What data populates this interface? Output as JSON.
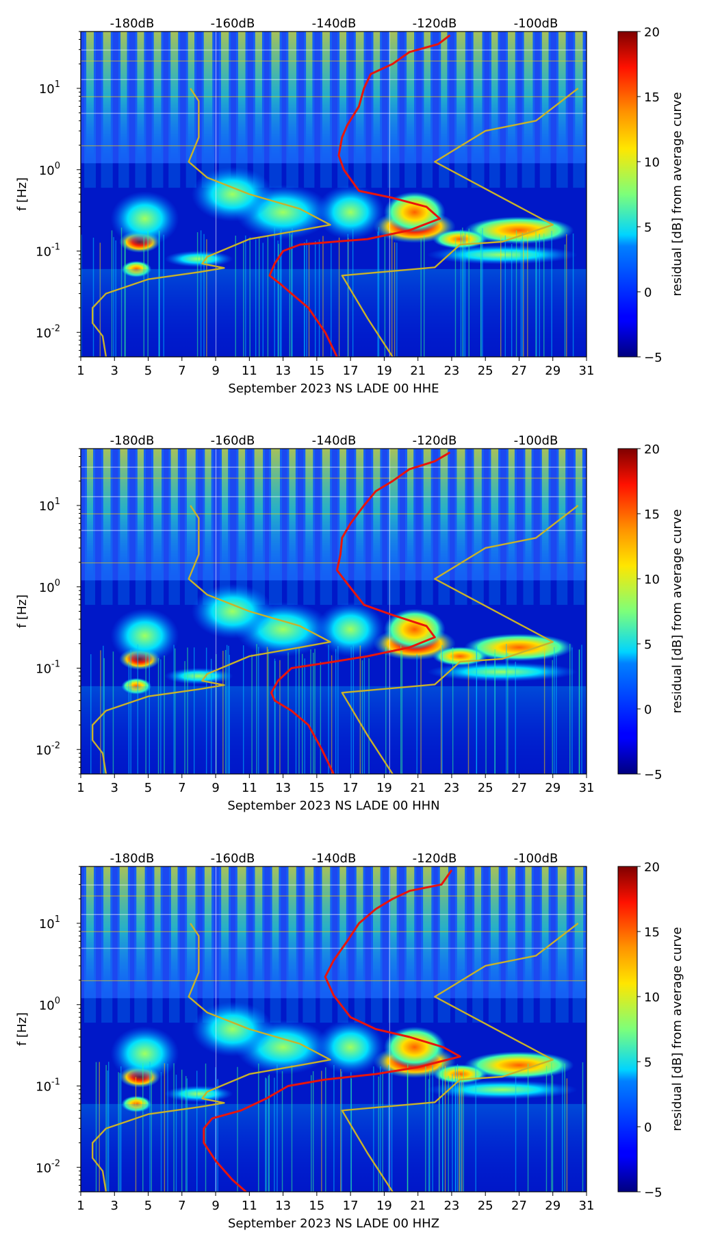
{
  "colors": {
    "psd_curve": "#e8150c",
    "noise_model_curve": "#c9b22a",
    "top_scale_text": "#e00000",
    "colormap": "jet"
  },
  "chart_data": [
    {
      "type": "heatmap",
      "xlabel": "September 2023 NS LADE 00 HHE",
      "ylabel": "f [Hz]",
      "x_ticks": [
        "1",
        "3",
        "5",
        "7",
        "9",
        "11",
        "13",
        "15",
        "17",
        "19",
        "21",
        "23",
        "25",
        "27",
        "29",
        "31"
      ],
      "xlim": [
        1,
        31
      ],
      "y_scale": "log",
      "ylim": [
        0.005,
        50
      ],
      "y_ticks": [
        {
          "exp": "-2"
        },
        {
          "exp": "-1"
        },
        {
          "exp": "0"
        },
        {
          "exp": "1"
        }
      ],
      "y_tick_base": "10",
      "top_scale_labels": [
        "-180dB",
        "-160dB",
        "-140dB",
        "-120dB",
        "-100dB"
      ],
      "colorbar": {
        "label": "residual [dB] from average curve",
        "min": -5,
        "max": 20,
        "ticks": [
          "20",
          "15",
          "10",
          "5",
          "0",
          "−5"
        ]
      },
      "series": [
        {
          "color_key": "psd_curve",
          "points": [
            [
              22.9,
              45
            ],
            [
              22.2,
              35
            ],
            [
              20.5,
              28
            ],
            [
              19.5,
              20
            ],
            [
              18.2,
              15
            ],
            [
              17.8,
              10
            ],
            [
              17.5,
              6
            ],
            [
              16.8,
              3.5
            ],
            [
              16.5,
              2.5
            ],
            [
              16.3,
              1.5
            ],
            [
              16.6,
              1.0
            ],
            [
              17.5,
              0.55
            ],
            [
              19.5,
              0.45
            ],
            [
              21.5,
              0.35
            ],
            [
              22.3,
              0.25
            ],
            [
              20.5,
              0.18
            ],
            [
              18,
              0.14
            ],
            [
              16,
              0.13
            ],
            [
              14,
              0.12
            ],
            [
              13,
              0.1
            ],
            [
              12.5,
              0.07
            ],
            [
              12.2,
              0.05
            ],
            [
              12.8,
              0.04
            ],
            [
              13.5,
              0.03
            ],
            [
              14.5,
              0.02
            ],
            [
              15.5,
              0.01
            ],
            [
              16.2,
              0.005
            ]
          ]
        },
        {
          "color_key": "noise_model_curve",
          "points": [
            [
              2.5,
              0.005
            ],
            [
              2.3,
              0.009
            ],
            [
              1.7,
              0.013
            ],
            [
              1.7,
              0.02
            ],
            [
              2.5,
              0.03
            ],
            [
              5,
              0.045
            ],
            [
              8,
              0.055
            ],
            [
              9.5,
              0.062
            ],
            [
              8.2,
              0.07
            ],
            [
              8.5,
              0.085
            ],
            [
              11,
              0.14
            ],
            [
              14,
              0.18
            ],
            [
              15.8,
              0.21
            ],
            [
              14,
              0.33
            ],
            [
              11,
              0.5
            ],
            [
              8.5,
              0.8
            ],
            [
              7.4,
              1.25
            ],
            [
              8,
              2.5
            ],
            [
              8,
              7
            ],
            [
              7.5,
              10
            ]
          ]
        },
        {
          "color_key": "noise_model_curve",
          "points": [
            [
              19.5,
              0.005
            ],
            [
              18,
              0.015
            ],
            [
              16.5,
              0.05
            ],
            [
              22,
              0.063
            ],
            [
              23.5,
              0.12
            ],
            [
              26,
              0.13
            ],
            [
              29,
              0.21
            ],
            [
              22,
              1.25
            ],
            [
              25,
              3
            ],
            [
              28,
              4
            ],
            [
              30.5,
              10
            ]
          ]
        }
      ]
    },
    {
      "type": "heatmap",
      "xlabel": "September 2023 NS LADE 00 HHN",
      "ylabel": "f [Hz]",
      "x_ticks": [
        "1",
        "3",
        "5",
        "7",
        "9",
        "11",
        "13",
        "15",
        "17",
        "19",
        "21",
        "23",
        "25",
        "27",
        "29",
        "31"
      ],
      "xlim": [
        1,
        31
      ],
      "y_scale": "log",
      "ylim": [
        0.005,
        50
      ],
      "y_ticks": [
        {
          "exp": "-2"
        },
        {
          "exp": "-1"
        },
        {
          "exp": "0"
        },
        {
          "exp": "1"
        }
      ],
      "y_tick_base": "10",
      "top_scale_labels": [
        "-180dB",
        "-160dB",
        "-140dB",
        "-120dB",
        "-100dB"
      ],
      "colorbar": {
        "label": "residual [dB] from average curve",
        "min": -5,
        "max": 20,
        "ticks": [
          "20",
          "15",
          "10",
          "5",
          "0",
          "−5"
        ]
      },
      "series": [
        {
          "color_key": "psd_curve",
          "points": [
            [
              22.9,
              45
            ],
            [
              22,
              35
            ],
            [
              20.5,
              28
            ],
            [
              19.5,
              20
            ],
            [
              18.5,
              15
            ],
            [
              17.8,
              10
            ],
            [
              17,
              6
            ],
            [
              16.5,
              4
            ],
            [
              16.4,
              2.5
            ],
            [
              16.2,
              1.6
            ],
            [
              16.8,
              1.1
            ],
            [
              17.8,
              0.6
            ],
            [
              19.5,
              0.45
            ],
            [
              21.5,
              0.33
            ],
            [
              22,
              0.24
            ],
            [
              20.5,
              0.18
            ],
            [
              18,
              0.14
            ],
            [
              16,
              0.12
            ],
            [
              13.5,
              0.1
            ],
            [
              12.7,
              0.07
            ],
            [
              12.3,
              0.05
            ],
            [
              12.5,
              0.04
            ],
            [
              13.5,
              0.03
            ],
            [
              14.5,
              0.02
            ],
            [
              15.3,
              0.01
            ],
            [
              16,
              0.005
            ]
          ]
        },
        {
          "color_key": "noise_model_curve",
          "points": [
            [
              2.5,
              0.005
            ],
            [
              2.3,
              0.009
            ],
            [
              1.7,
              0.013
            ],
            [
              1.7,
              0.02
            ],
            [
              2.5,
              0.03
            ],
            [
              5,
              0.045
            ],
            [
              8,
              0.055
            ],
            [
              9.5,
              0.062
            ],
            [
              8.2,
              0.07
            ],
            [
              8.5,
              0.085
            ],
            [
              11,
              0.14
            ],
            [
              14,
              0.18
            ],
            [
              15.8,
              0.21
            ],
            [
              14,
              0.33
            ],
            [
              11,
              0.5
            ],
            [
              8.5,
              0.8
            ],
            [
              7.4,
              1.25
            ],
            [
              8,
              2.5
            ],
            [
              8,
              7
            ],
            [
              7.5,
              10
            ]
          ]
        },
        {
          "color_key": "noise_model_curve",
          "points": [
            [
              19.5,
              0.005
            ],
            [
              18,
              0.015
            ],
            [
              16.5,
              0.05
            ],
            [
              22,
              0.063
            ],
            [
              23.5,
              0.12
            ],
            [
              26,
              0.13
            ],
            [
              29,
              0.21
            ],
            [
              22,
              1.25
            ],
            [
              25,
              3
            ],
            [
              28,
              4
            ],
            [
              30.5,
              10
            ]
          ]
        }
      ]
    },
    {
      "type": "heatmap",
      "xlabel": "September 2023 NS LADE 00 HHZ",
      "ylabel": "f [Hz]",
      "x_ticks": [
        "1",
        "3",
        "5",
        "7",
        "9",
        "11",
        "13",
        "15",
        "17",
        "19",
        "21",
        "23",
        "25",
        "27",
        "29",
        "31"
      ],
      "xlim": [
        1,
        31
      ],
      "y_scale": "log",
      "ylim": [
        0.005,
        50
      ],
      "y_ticks": [
        {
          "exp": "-2"
        },
        {
          "exp": "-1"
        },
        {
          "exp": "0"
        },
        {
          "exp": "1"
        }
      ],
      "y_tick_base": "10",
      "top_scale_labels": [
        "-180dB",
        "-160dB",
        "-140dB",
        "-120dB",
        "-100dB"
      ],
      "colorbar": {
        "label": "residual [dB] from average curve",
        "min": -5,
        "max": 20,
        "ticks": [
          "20",
          "15",
          "10",
          "5",
          "0",
          "−5"
        ]
      },
      "series": [
        {
          "color_key": "psd_curve",
          "points": [
            [
              23,
              45
            ],
            [
              22.4,
              30
            ],
            [
              20.5,
              25
            ],
            [
              19.5,
              20
            ],
            [
              18.5,
              15
            ],
            [
              17.5,
              10
            ],
            [
              16.8,
              6
            ],
            [
              16,
              3.5
            ],
            [
              15.5,
              2.2
            ],
            [
              16,
              1.3
            ],
            [
              17,
              0.7
            ],
            [
              18.5,
              0.5
            ],
            [
              20.5,
              0.4
            ],
            [
              22.5,
              0.3
            ],
            [
              23.5,
              0.23
            ],
            [
              21,
              0.17
            ],
            [
              18.5,
              0.14
            ],
            [
              15.5,
              0.12
            ],
            [
              13.3,
              0.1
            ],
            [
              12,
              0.07
            ],
            [
              10.5,
              0.05
            ],
            [
              8.8,
              0.04
            ],
            [
              8.3,
              0.03
            ],
            [
              8.3,
              0.02
            ],
            [
              9,
              0.012
            ],
            [
              10,
              0.007
            ],
            [
              10.8,
              0.005
            ]
          ]
        },
        {
          "color_key": "noise_model_curve",
          "points": [
            [
              2.5,
              0.005
            ],
            [
              2.3,
              0.009
            ],
            [
              1.7,
              0.013
            ],
            [
              1.7,
              0.02
            ],
            [
              2.5,
              0.03
            ],
            [
              5,
              0.045
            ],
            [
              8,
              0.055
            ],
            [
              9.5,
              0.062
            ],
            [
              8.2,
              0.07
            ],
            [
              8.5,
              0.085
            ],
            [
              11,
              0.14
            ],
            [
              14,
              0.18
            ],
            [
              15.8,
              0.21
            ],
            [
              14,
              0.33
            ],
            [
              11,
              0.5
            ],
            [
              8.5,
              0.8
            ],
            [
              7.4,
              1.25
            ],
            [
              8,
              2.5
            ],
            [
              8,
              7
            ],
            [
              7.5,
              10
            ]
          ]
        },
        {
          "color_key": "noise_model_curve",
          "points": [
            [
              19.5,
              0.005
            ],
            [
              18,
              0.015
            ],
            [
              16.5,
              0.05
            ],
            [
              22,
              0.063
            ],
            [
              23.5,
              0.12
            ],
            [
              26,
              0.13
            ],
            [
              29,
              0.21
            ],
            [
              22,
              1.25
            ],
            [
              25,
              3
            ],
            [
              28,
              4
            ],
            [
              30.5,
              10
            ]
          ]
        }
      ]
    }
  ]
}
